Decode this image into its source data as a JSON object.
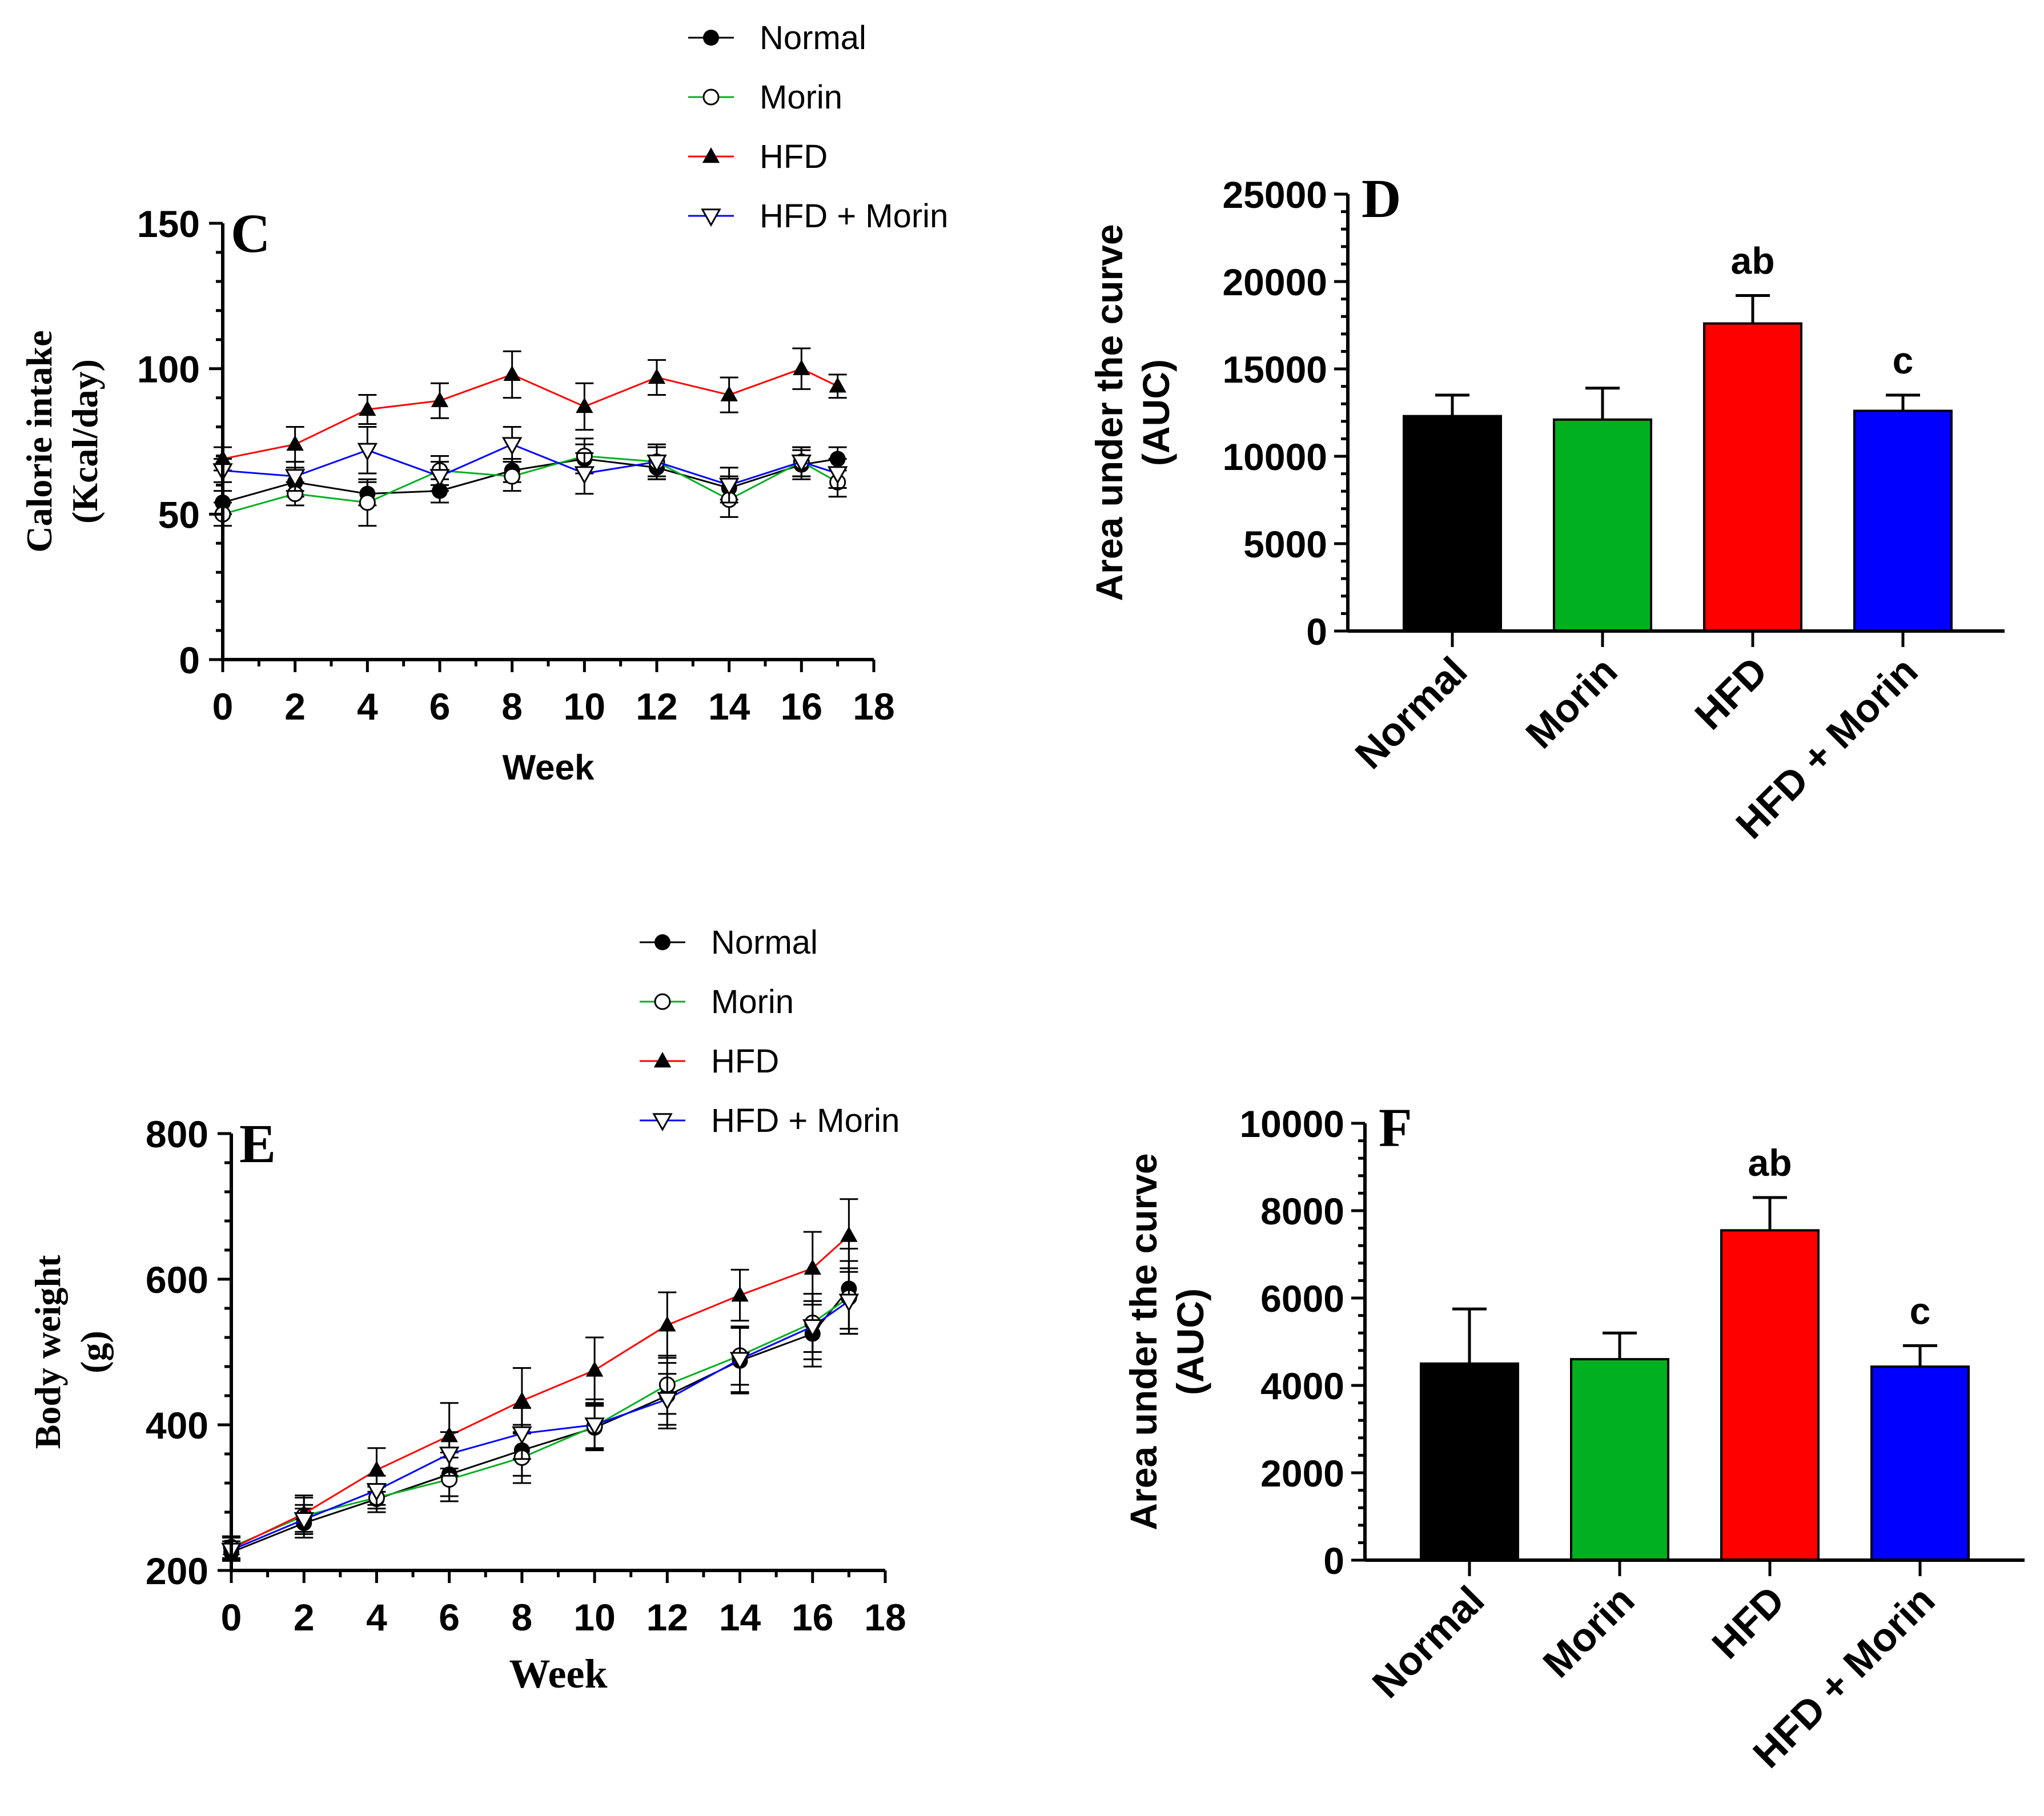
{
  "palette": {
    "Normal": "#000000",
    "Morin": "#00b020",
    "HFD": "#ff0000",
    "HFD + Morin": "#0000ff"
  },
  "chart_data": [
    {
      "id": "C",
      "type": "line",
      "panel_label": "C",
      "xlabel": "Week",
      "ylabel": [
        "Calorie intake",
        "(Kcal/day)"
      ],
      "xlim": [
        0,
        18
      ],
      "ylim": [
        0,
        150
      ],
      "xticks": [
        0,
        2,
        4,
        6,
        8,
        10,
        12,
        14,
        16,
        18
      ],
      "yticks": [
        0,
        50,
        100,
        150
      ],
      "x": [
        0,
        2,
        4,
        6,
        8,
        10,
        12,
        14,
        16,
        17
      ],
      "legend": "top",
      "series": [
        {
          "name": "Normal",
          "marker": "circle-filled",
          "values": [
            54,
            61,
            57,
            58,
            65,
            69,
            66,
            59,
            67,
            69
          ],
          "err": [
            4,
            5,
            4,
            4,
            4,
            5,
            4,
            4,
            5,
            4
          ]
        },
        {
          "name": "Morin",
          "marker": "circle-open",
          "values": [
            50,
            57,
            54,
            65,
            63,
            70,
            68,
            55,
            68,
            61
          ],
          "err": [
            4,
            4,
            8,
            5,
            5,
            6,
            5,
            6,
            5,
            5
          ]
        },
        {
          "name": "HFD",
          "marker": "triangle-up",
          "values": [
            69,
            74,
            86,
            89,
            98,
            87,
            97,
            91,
            100,
            94
          ],
          "err": [
            4,
            6,
            5,
            6,
            8,
            8,
            6,
            6,
            7,
            4
          ]
        },
        {
          "name": "HFD + Morin",
          "marker": "triangle-down",
          "values": [
            65,
            63,
            72,
            63,
            74,
            64,
            68,
            60,
            68,
            64
          ],
          "err": [
            4,
            5,
            8,
            5,
            6,
            7,
            6,
            6,
            5,
            5
          ]
        }
      ]
    },
    {
      "id": "D",
      "type": "bar",
      "panel_label": "D",
      "ylabel": [
        "Area under the curve",
        "(AUC)"
      ],
      "ylim": [
        0,
        25000
      ],
      "yticks": [
        0,
        5000,
        10000,
        15000,
        20000,
        25000
      ],
      "categories": [
        "Normal",
        "Morin",
        "HFD",
        "HFD + Morin"
      ],
      "values": [
        12300,
        12100,
        17600,
        12600
      ],
      "err": [
        1200,
        1800,
        1600,
        900
      ],
      "annotations": [
        "",
        "",
        "ab",
        "c"
      ]
    },
    {
      "id": "E",
      "type": "line",
      "panel_label": "E",
      "xlabel": "Week",
      "ylabel": [
        "Body weight",
        "(g)"
      ],
      "xlim": [
        0,
        18
      ],
      "ylim": [
        200,
        800
      ],
      "xticks": [
        0,
        2,
        4,
        6,
        8,
        10,
        12,
        14,
        16,
        18
      ],
      "yticks": [
        200,
        400,
        600,
        800
      ],
      "x": [
        0,
        2,
        4,
        6,
        8,
        10,
        12,
        14,
        16,
        17
      ],
      "legend": "top",
      "series": [
        {
          "name": "Normal",
          "marker": "circle-filled",
          "values": [
            225,
            265,
            298,
            332,
            365,
            396,
            440,
            488,
            525,
            587
          ],
          "err": [
            12,
            20,
            18,
            30,
            35,
            30,
            45,
            45,
            45,
            55
          ]
        },
        {
          "name": "Morin",
          "marker": "circle-open",
          "values": [
            232,
            275,
            300,
            325,
            355,
            398,
            455,
            495,
            540,
            575
          ],
          "err": [
            15,
            25,
            15,
            30,
            35,
            30,
            40,
            40,
            40,
            50
          ]
        },
        {
          "name": "HFD",
          "marker": "triangle-up",
          "values": [
            230,
            278,
            338,
            385,
            433,
            475,
            537,
            578,
            615,
            660
          ],
          "err": [
            15,
            25,
            30,
            45,
            45,
            45,
            45,
            35,
            50,
            50
          ]
        },
        {
          "name": "HFD + Morin",
          "marker": "triangle-down",
          "values": [
            228,
            270,
            310,
            360,
            388,
            400,
            435,
            490,
            535,
            570
          ],
          "err": [
            12,
            20,
            20,
            30,
            35,
            35,
            35,
            45,
            45,
            45
          ]
        }
      ]
    },
    {
      "id": "F",
      "type": "bar",
      "panel_label": "F",
      "ylabel": [
        "Area under the curve",
        "(AUC)"
      ],
      "ylim": [
        0,
        10000
      ],
      "yticks": [
        0,
        2000,
        4000,
        6000,
        8000,
        10000
      ],
      "categories": [
        "Normal",
        "Morin",
        "HFD",
        "HFD + Morin"
      ],
      "values": [
        4500,
        4600,
        7550,
        4430
      ],
      "err": [
        1250,
        600,
        750,
        480
      ],
      "annotations": [
        "",
        "",
        "ab",
        "c"
      ]
    }
  ]
}
